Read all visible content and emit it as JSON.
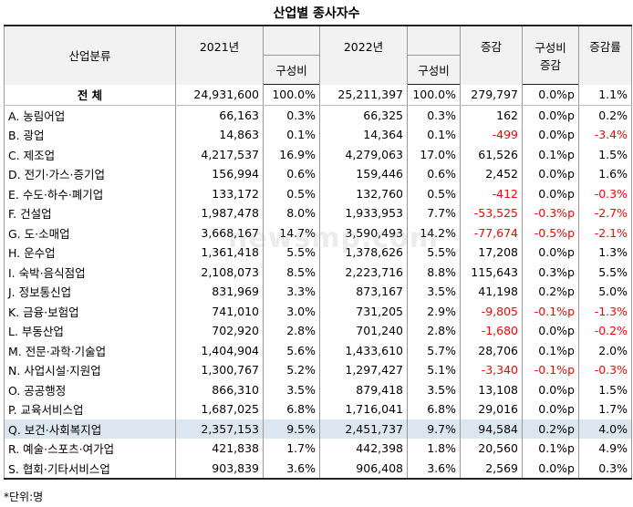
{
  "title": "산업별 종사자수",
  "headers": {
    "category": "산업분류",
    "y2021": "2021년",
    "y2021_share": "구성비",
    "y2022": "2022년",
    "y2022_share": "구성비",
    "change": "증감",
    "share_change_top": "구성비",
    "share_change_bottom": "증감",
    "change_rate": "증감률"
  },
  "rows": [
    {
      "cat": "전 체",
      "v2021": "24,931,600",
      "s2021": "100.0%",
      "v2022": "25,211,397",
      "s2022": "100.0%",
      "chg": "279,797",
      "schg": "0.0%p",
      "rate": "1.1%"
    },
    {
      "cat": "A. 농림어업",
      "v2021": "66,163",
      "s2021": "0.3%",
      "v2022": "66,325",
      "s2022": "0.3%",
      "chg": "162",
      "schg": "0.0%p",
      "rate": "0.2%"
    },
    {
      "cat": "B. 광업",
      "v2021": "14,863",
      "s2021": "0.1%",
      "v2022": "14,364",
      "s2022": "0.1%",
      "chg": "-499",
      "schg": "0.0%p",
      "rate": "-3.4%"
    },
    {
      "cat": "C. 제조업",
      "v2021": "4,217,537",
      "s2021": "16.9%",
      "v2022": "4,279,063",
      "s2022": "17.0%",
      "chg": "61,526",
      "schg": "0.1%p",
      "rate": "1.5%"
    },
    {
      "cat": "D. 전기·가스·증기업",
      "v2021": "156,994",
      "s2021": "0.6%",
      "v2022": "159,446",
      "s2022": "0.6%",
      "chg": "2,452",
      "schg": "0.0%p",
      "rate": "1.6%"
    },
    {
      "cat": "E. 수도·하수·폐기업",
      "v2021": "133,172",
      "s2021": "0.5%",
      "v2022": "132,760",
      "s2022": "0.5%",
      "chg": "-412",
      "schg": "0.0%p",
      "rate": "-0.3%"
    },
    {
      "cat": "F. 건설업",
      "v2021": "1,987,478",
      "s2021": "8.0%",
      "v2022": "1,933,953",
      "s2022": "7.7%",
      "chg": "-53,525",
      "schg": "-0.3%p",
      "rate": "-2.7%"
    },
    {
      "cat": "G. 도·소매업",
      "v2021": "3,668,167",
      "s2021": "14.7%",
      "v2022": "3,590,493",
      "s2022": "14.2%",
      "chg": "-77,674",
      "schg": "-0.5%p",
      "rate": "-2.1%"
    },
    {
      "cat": "H. 운수업",
      "v2021": "1,361,418",
      "s2021": "5.5%",
      "v2022": "1,378,626",
      "s2022": "5.5%",
      "chg": "17,208",
      "schg": "0.0%p",
      "rate": "1.3%"
    },
    {
      "cat": "I. 숙박·음식점업",
      "v2021": "2,108,073",
      "s2021": "8.5%",
      "v2022": "2,223,716",
      "s2022": "8.8%",
      "chg": "115,643",
      "schg": "0.3%p",
      "rate": "5.5%"
    },
    {
      "cat": "J. 정보통신업",
      "v2021": "831,969",
      "s2021": "3.3%",
      "v2022": "873,167",
      "s2022": "3.5%",
      "chg": "41,198",
      "schg": "0.2%p",
      "rate": "5.0%"
    },
    {
      "cat": "K. 금융·보험업",
      "v2021": "741,010",
      "s2021": "3.0%",
      "v2022": "731,205",
      "s2022": "2.9%",
      "chg": "-9,805",
      "schg": "-0.1%p",
      "rate": "-1.3%"
    },
    {
      "cat": "L. 부동산업",
      "v2021": "702,920",
      "s2021": "2.8%",
      "v2022": "701,240",
      "s2022": "2.8%",
      "chg": "-1,680",
      "schg": "0.0%p",
      "rate": "-0.2%"
    },
    {
      "cat": "M. 전문·과학·기술업",
      "v2021": "1,404,904",
      "s2021": "5.6%",
      "v2022": "1,433,610",
      "s2022": "5.7%",
      "chg": "28,706",
      "schg": "0.1%p",
      "rate": "2.0%"
    },
    {
      "cat": "N. 사업시설·지원업",
      "v2021": "1,300,767",
      "s2021": "5.2%",
      "v2022": "1,297,427",
      "s2022": "5.1%",
      "chg": "-3,340",
      "schg": "-0.1%p",
      "rate": "-0.3%"
    },
    {
      "cat": "O. 공공행정",
      "v2021": "866,310",
      "s2021": "3.5%",
      "v2022": "879,418",
      "s2022": "3.5%",
      "chg": "13,108",
      "schg": "0.0%p",
      "rate": "1.5%"
    },
    {
      "cat": "P. 교육서비스업",
      "v2021": "1,687,025",
      "s2021": "6.8%",
      "v2022": "1,716,041",
      "s2022": "6.8%",
      "chg": "29,016",
      "schg": "0.0%p",
      "rate": "1.7%"
    },
    {
      "cat": "Q. 보건·사회복지업",
      "v2021": "2,357,153",
      "s2021": "9.5%",
      "v2022": "2,451,737",
      "s2022": "9.7%",
      "chg": "94,584",
      "schg": "0.2%p",
      "rate": "4.0%"
    },
    {
      "cat": "R. 예술·스포츠·여가업",
      "v2021": "421,838",
      "s2021": "1.7%",
      "v2022": "442,398",
      "s2022": "1.8%",
      "chg": "20,560",
      "schg": "0.1%p",
      "rate": "4.9%"
    },
    {
      "cat": "S. 협회·기타서비스업",
      "v2021": "903,839",
      "s2021": "3.6%",
      "v2022": "906,408",
      "s2022": "3.6%",
      "chg": "2,569",
      "schg": "0.0%p",
      "rate": "0.3%"
    }
  ],
  "highlight_row": "Q. 보건·사회복지업",
  "negative_color": "#ff0000",
  "highlight_color": "#dce6f1",
  "note": "*단위:명",
  "watermark": "newsmp.com"
}
